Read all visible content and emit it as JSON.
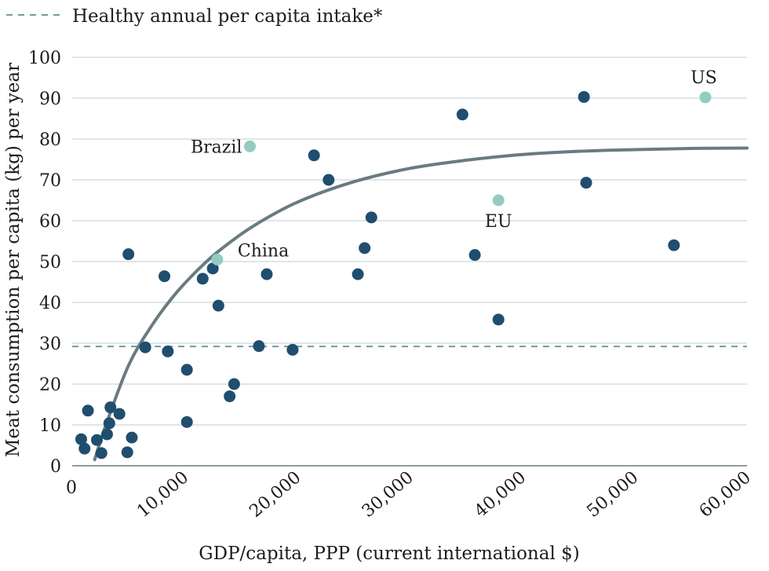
{
  "chart_data": {
    "type": "scatter",
    "title": "",
    "xlabel": "GDP/capita, PPP (current international $)",
    "ylabel": "Meat consumption per capita (kg) per year",
    "xlim": [
      0,
      60000
    ],
    "ylim": [
      0,
      100
    ],
    "x_ticks": [
      {
        "value": 0,
        "label": "0"
      },
      {
        "value": 10000,
        "label": "10,000"
      },
      {
        "value": 20000,
        "label": "20,000"
      },
      {
        "value": 30000,
        "label": "30,000"
      },
      {
        "value": 40000,
        "label": "40,000"
      },
      {
        "value": 50000,
        "label": "50,000"
      },
      {
        "value": 60000,
        "label": "60,000"
      }
    ],
    "y_ticks": [
      {
        "value": 0,
        "label": "0"
      },
      {
        "value": 10,
        "label": "10"
      },
      {
        "value": 20,
        "label": "20"
      },
      {
        "value": 30,
        "label": "30"
      },
      {
        "value": 40,
        "label": "40"
      },
      {
        "value": 50,
        "label": "50"
      },
      {
        "value": 60,
        "label": "60"
      },
      {
        "value": 70,
        "label": "70"
      },
      {
        "value": 80,
        "label": "80"
      },
      {
        "value": 90,
        "label": "90"
      },
      {
        "value": 100,
        "label": "100"
      }
    ],
    "grid": "horizontal",
    "legend": {
      "position": "top-left",
      "label": "Healthy annual per capita intake*",
      "style": "dashed"
    },
    "reference_line": {
      "y": 29.2,
      "color": "#6f9c9b"
    },
    "colors": {
      "points": "#1f4e6e",
      "highlight": "#95cbc2",
      "trend": "#6a7b80"
    },
    "series": [
      {
        "name": "",
        "points": [
          {
            "x": 800,
            "y": 6.5
          },
          {
            "x": 1100,
            "y": 4.2
          },
          {
            "x": 1400,
            "y": 13.5
          },
          {
            "x": 2200,
            "y": 6.3
          },
          {
            "x": 2600,
            "y": 3.1
          },
          {
            "x": 3100,
            "y": 7.7
          },
          {
            "x": 3300,
            "y": 10.4
          },
          {
            "x": 3400,
            "y": 14.3
          },
          {
            "x": 4200,
            "y": 12.7
          },
          {
            "x": 4900,
            "y": 3.3
          },
          {
            "x": 5300,
            "y": 6.9
          },
          {
            "x": 5000,
            "y": 51.8
          },
          {
            "x": 6500,
            "y": 29.0
          },
          {
            "x": 8200,
            "y": 46.4
          },
          {
            "x": 8500,
            "y": 28.0
          },
          {
            "x": 10200,
            "y": 23.5
          },
          {
            "x": 10200,
            "y": 10.7
          },
          {
            "x": 11600,
            "y": 45.8
          },
          {
            "x": 12500,
            "y": 48.3
          },
          {
            "x": 13000,
            "y": 39.2
          },
          {
            "x": 14000,
            "y": 17.0
          },
          {
            "x": 14400,
            "y": 20.0
          },
          {
            "x": 16600,
            "y": 29.3
          },
          {
            "x": 17300,
            "y": 46.9
          },
          {
            "x": 19600,
            "y": 28.4
          },
          {
            "x": 21500,
            "y": 76.0
          },
          {
            "x": 22800,
            "y": 70.0
          },
          {
            "x": 25400,
            "y": 46.9
          },
          {
            "x": 26000,
            "y": 53.3
          },
          {
            "x": 26600,
            "y": 60.8
          },
          {
            "x": 34700,
            "y": 86.0
          },
          {
            "x": 35800,
            "y": 51.6
          },
          {
            "x": 37900,
            "y": 35.8
          },
          {
            "x": 45500,
            "y": 90.3
          },
          {
            "x": 45700,
            "y": 69.3
          },
          {
            "x": 53500,
            "y": 54.0
          }
        ]
      },
      {
        "name": "",
        "points": [
          {
            "x": 12900,
            "y": 50.5,
            "label": "China"
          },
          {
            "x": 15800,
            "y": 78.2,
            "label": "Brazil"
          },
          {
            "x": 37900,
            "y": 65.0,
            "label": "EU"
          },
          {
            "x": 56300,
            "y": 90.2,
            "label": "US"
          }
        ]
      }
    ],
    "trend_curve": {
      "points": [
        {
          "x": 2000,
          "y": 1.5
        },
        {
          "x": 3000,
          "y": 10.0
        },
        {
          "x": 5000,
          "y": 24.5
        },
        {
          "x": 7000,
          "y": 34.0
        },
        {
          "x": 9000,
          "y": 41.5
        },
        {
          "x": 11000,
          "y": 47.5
        },
        {
          "x": 13000,
          "y": 52.5
        },
        {
          "x": 16000,
          "y": 58.5
        },
        {
          "x": 20000,
          "y": 64.5
        },
        {
          "x": 25000,
          "y": 69.5
        },
        {
          "x": 30000,
          "y": 72.8
        },
        {
          "x": 35000,
          "y": 74.8
        },
        {
          "x": 40000,
          "y": 76.2
        },
        {
          "x": 45000,
          "y": 77.0
        },
        {
          "x": 50000,
          "y": 77.4
        },
        {
          "x": 55000,
          "y": 77.7
        },
        {
          "x": 60000,
          "y": 77.8
        }
      ]
    }
  }
}
